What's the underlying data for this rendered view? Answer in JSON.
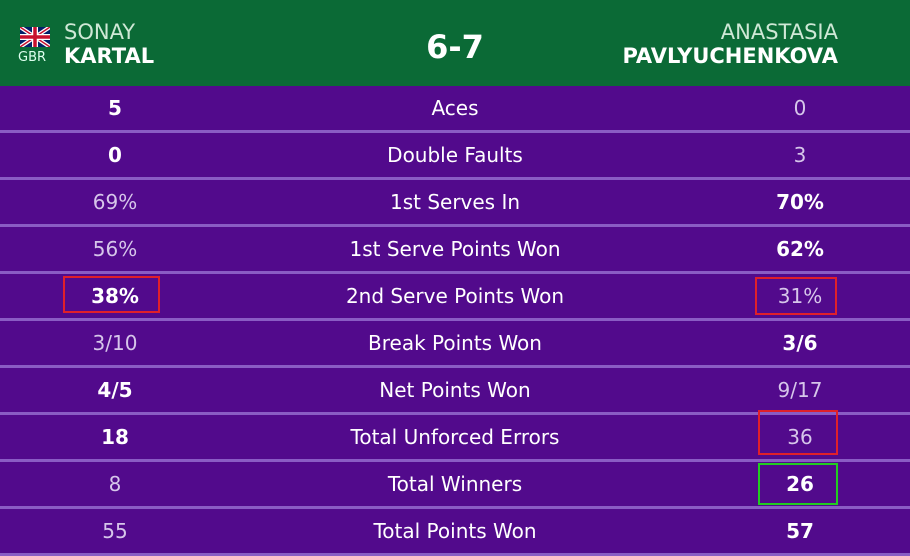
{
  "header": {
    "player1": {
      "country": "GBR",
      "first": "SONAY",
      "last": "KARTAL"
    },
    "score": "6-7",
    "player2": {
      "first": "ANASTASIA",
      "last": "PAVLYUCHENKOVA"
    }
  },
  "colors": {
    "header": "#0b6a36",
    "row": "#520a8c",
    "highlight_red": "#e0202a",
    "highlight_green": "#22cc22"
  },
  "stats": [
    {
      "label": "Aces",
      "p1": "5",
      "p2": "0",
      "winner": "p1"
    },
    {
      "label": "Double Faults",
      "p1": "0",
      "p2": "3",
      "winner": "p1"
    },
    {
      "label": "1st Serves In",
      "p1": "69%",
      "p2": "70%",
      "winner": "p2"
    },
    {
      "label": "1st Serve Points Won",
      "p1": "56%",
      "p2": "62%",
      "winner": "p2"
    },
    {
      "label": "2nd Serve Points Won",
      "p1": "38%",
      "p2": "31%",
      "winner": "p1"
    },
    {
      "label": "Break Points Won",
      "p1": "3/10",
      "p2": "3/6",
      "winner": "p2"
    },
    {
      "label": "Net Points Won",
      "p1": "4/5",
      "p2": "9/17",
      "winner": "p1"
    },
    {
      "label": "Total Unforced Errors",
      "p1": "18",
      "p2": "36",
      "winner": "p1"
    },
    {
      "label": "Total Winners",
      "p1": "8",
      "p2": "26",
      "winner": "p2"
    },
    {
      "label": "Total Points Won",
      "p1": "55",
      "p2": "57",
      "winner": "p2"
    }
  ]
}
